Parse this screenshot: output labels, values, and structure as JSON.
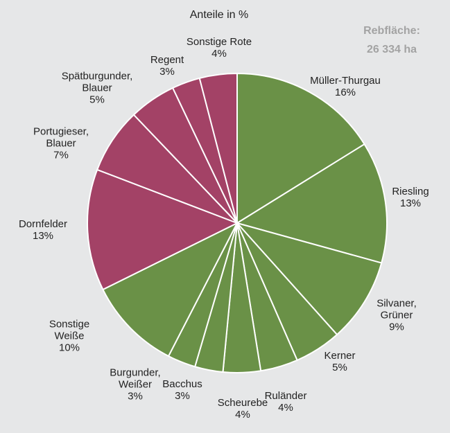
{
  "chart_data": {
    "type": "pie",
    "title": "Anteile in %",
    "annotations": [
      "Rebfläche:",
      "26 334 ha"
    ],
    "categories": [
      "Müller-Thurgau",
      "Riesling",
      "Silvaner, Grüner",
      "Kerner",
      "Ruländer",
      "Scheurebe",
      "Bacchus",
      "Burgunder, Weißer",
      "Sonstige Weiße",
      "Dornfelder",
      "Portugieser, Blauer",
      "Spätburgunder, Blauer",
      "Regent",
      "Sonstige Rote"
    ],
    "values": [
      16,
      13,
      9,
      5,
      4,
      4,
      3,
      3,
      10,
      13,
      7,
      5,
      3,
      4
    ],
    "value_labels": [
      "16%",
      "13%",
      "9%",
      "5%",
      "4%",
      "4%",
      "3%",
      "3%",
      "10%",
      "13%",
      "7%",
      "5%",
      "3%",
      "4%"
    ],
    "colors": [
      "#6a9147",
      "#6a9147",
      "#6a9147",
      "#6a9147",
      "#6a9147",
      "#6a9147",
      "#6a9147",
      "#6a9147",
      "#6a9147",
      "#a34266",
      "#a34266",
      "#a34266",
      "#a34266",
      "#a34266"
    ]
  }
}
